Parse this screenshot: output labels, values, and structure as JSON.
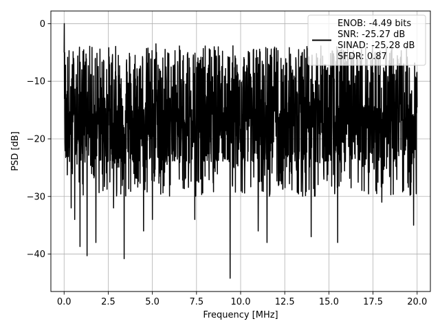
{
  "chart_data": {
    "type": "line",
    "title": "",
    "xlabel": "Frequency [MHz]",
    "ylabel": "PSD [dB]",
    "xlim": [
      -0.75,
      20.75
    ],
    "ylim": [
      -46.5,
      2.2
    ],
    "x_ticks": [
      0.0,
      2.5,
      5.0,
      7.5,
      10.0,
      12.5,
      15.0,
      17.5,
      20.0
    ],
    "x_tick_labels": [
      "0.0",
      "2.5",
      "5.0",
      "7.5",
      "10.0",
      "12.5",
      "15.0",
      "17.5",
      "20.0"
    ],
    "y_ticks": [
      0,
      -10,
      -20,
      -30,
      -40
    ],
    "y_tick_labels": [
      "0",
      "−10",
      "−20",
      "−30",
      "−40"
    ],
    "grid": true,
    "legend_position": "upper-right",
    "line_color": "#000000",
    "series": [
      {
        "name": "ENOB: -4.49 bits\nSNR: -25.27 dB\nSINAD: -25.28 dB\nSFDR: 0.87",
        "legend_lines": [
          "ENOB: -4.49 bits",
          "SNR: -25.27 dB",
          "SINAD: -25.28 dB",
          "SFDR: 0.87"
        ],
        "description": "dense noise PSD spanning 0 to 20 MHz",
        "x_range": [
          0,
          20
        ],
        "peak": {
          "x": 0.05,
          "y": 0
        },
        "typical_band": [
          -22,
          -8
        ],
        "dips": [
          {
            "x": 0.4,
            "y": -32
          },
          {
            "x": 0.6,
            "y": -34
          },
          {
            "x": 0.9,
            "y": -38.7
          },
          {
            "x": 1.3,
            "y": -40.3
          },
          {
            "x": 1.8,
            "y": -38
          },
          {
            "x": 2.8,
            "y": -32
          },
          {
            "x": 3.4,
            "y": -40.8
          },
          {
            "x": 4.5,
            "y": -36
          },
          {
            "x": 5.0,
            "y": -34
          },
          {
            "x": 7.4,
            "y": -34
          },
          {
            "x": 9.4,
            "y": -44.2
          },
          {
            "x": 11.0,
            "y": -36
          },
          {
            "x": 11.5,
            "y": -38
          },
          {
            "x": 14.0,
            "y": -37
          },
          {
            "x": 15.5,
            "y": -38
          },
          {
            "x": 18.0,
            "y": -31
          },
          {
            "x": 19.8,
            "y": -35
          }
        ],
        "highs": [
          {
            "x": 1.0,
            "y": -8
          },
          {
            "x": 5.2,
            "y": -3.5
          },
          {
            "x": 7.0,
            "y": -5
          },
          {
            "x": 8.5,
            "y": -4
          },
          {
            "x": 10.5,
            "y": -5
          },
          {
            "x": 14.3,
            "y": -5.2
          }
        ]
      }
    ]
  }
}
